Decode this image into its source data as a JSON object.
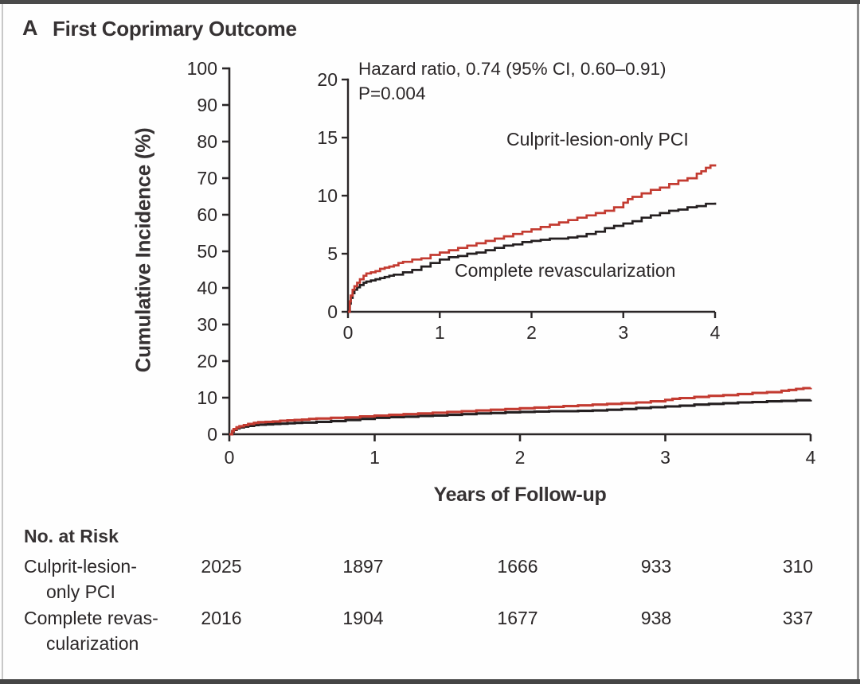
{
  "panel": {
    "label": "A",
    "title": "First Coprimary Outcome"
  },
  "colors": {
    "culprit_red": "#c33b31",
    "complete_black": "#241f20",
    "axis": "#2a2627",
    "frame_dark": "#4a4a4a",
    "frame_light": "#c8c8c8"
  },
  "risk_table": {
    "heading": "No. at Risk",
    "rows": [
      {
        "label_line1": "Culprit-lesion-",
        "label_line2": "only PCI",
        "values": [
          "2025",
          "1897",
          "1666",
          "933",
          "310"
        ]
      },
      {
        "label_line1": "Complete revas-",
        "label_line2": "cularization",
        "values": [
          "2016",
          "1904",
          "1677",
          "938",
          "337"
        ]
      }
    ]
  },
  "chart_data": {
    "type": "line",
    "title": "First Coprimary Outcome",
    "xlabel": "Years of Follow-up",
    "ylabel": "Cumulative Incidence (%)",
    "annotation_line1": "Hazard ratio, 0.74 (95% CI, 0.60–0.91)",
    "annotation_line2": "P=0.004",
    "legend_position": "inline-labels",
    "grid": false,
    "main_axis": {
      "xlim": [
        0,
        4
      ],
      "ylim": [
        0,
        100
      ],
      "x_ticks": [
        0,
        1,
        2,
        3,
        4
      ],
      "y_ticks": [
        0,
        10,
        20,
        30,
        40,
        50,
        60,
        70,
        80,
        90,
        100
      ]
    },
    "inset_axis": {
      "xlim": [
        0,
        4
      ],
      "ylim": [
        0,
        20
      ],
      "x_ticks": [
        0,
        1,
        2,
        3,
        4
      ],
      "y_ticks": [
        0,
        5,
        10,
        15,
        20
      ]
    },
    "series": [
      {
        "name": "Complete revascularization",
        "color": "#241f20",
        "x": [
          0,
          0.02,
          0.03,
          0.05,
          0.07,
          0.1,
          0.13,
          0.17,
          0.2,
          0.25,
          0.3,
          0.35,
          0.4,
          0.45,
          0.5,
          0.6,
          0.7,
          0.8,
          0.9,
          1.0,
          1.1,
          1.2,
          1.3,
          1.4,
          1.5,
          1.6,
          1.7,
          1.8,
          1.9,
          2.0,
          2.1,
          2.2,
          2.4,
          2.5,
          2.6,
          2.7,
          2.8,
          2.9,
          3.0,
          3.1,
          3.2,
          3.3,
          3.4,
          3.5,
          3.6,
          3.7,
          3.8,
          3.9,
          4.0
        ],
        "y": [
          0,
          0.7,
          1.2,
          1.6,
          1.9,
          2.1,
          2.3,
          2.5,
          2.6,
          2.7,
          2.8,
          2.9,
          3.0,
          3.1,
          3.2,
          3.4,
          3.6,
          3.9,
          4.2,
          4.5,
          4.7,
          4.8,
          5.0,
          5.1,
          5.3,
          5.5,
          5.7,
          5.8,
          6.0,
          6.1,
          6.2,
          6.3,
          6.4,
          6.5,
          6.7,
          6.9,
          7.2,
          7.4,
          7.6,
          7.8,
          8.1,
          8.3,
          8.5,
          8.7,
          8.8,
          9.0,
          9.1,
          9.3,
          9.4
        ]
      },
      {
        "name": "Culprit-lesion-only PCI",
        "color": "#c33b31",
        "x": [
          0,
          0.02,
          0.03,
          0.05,
          0.07,
          0.1,
          0.13,
          0.17,
          0.2,
          0.25,
          0.3,
          0.35,
          0.4,
          0.45,
          0.5,
          0.55,
          0.6,
          0.7,
          0.8,
          0.9,
          1.0,
          1.1,
          1.2,
          1.3,
          1.4,
          1.5,
          1.6,
          1.7,
          1.8,
          1.9,
          2.0,
          2.1,
          2.2,
          2.3,
          2.4,
          2.5,
          2.6,
          2.7,
          2.8,
          2.9,
          3.0,
          3.05,
          3.1,
          3.2,
          3.3,
          3.4,
          3.5,
          3.6,
          3.7,
          3.8,
          3.85,
          3.9,
          3.95,
          4.0
        ],
        "y": [
          0,
          0.9,
          1.4,
          1.9,
          2.2,
          2.5,
          2.8,
          3.1,
          3.3,
          3.4,
          3.5,
          3.7,
          3.8,
          3.9,
          4.0,
          4.2,
          4.3,
          4.5,
          4.6,
          4.9,
          5.1,
          5.3,
          5.5,
          5.7,
          5.9,
          6.1,
          6.3,
          6.5,
          6.7,
          6.9,
          7.1,
          7.3,
          7.5,
          7.7,
          7.9,
          8.1,
          8.3,
          8.5,
          8.7,
          9.0,
          9.4,
          9.7,
          9.9,
          10.2,
          10.5,
          10.7,
          11.0,
          11.3,
          11.5,
          11.9,
          12.1,
          12.4,
          12.6,
          12.7
        ]
      }
    ],
    "curve_labels": {
      "culprit": "Culprit-lesion-only PCI",
      "complete": "Complete revascularization"
    }
  }
}
